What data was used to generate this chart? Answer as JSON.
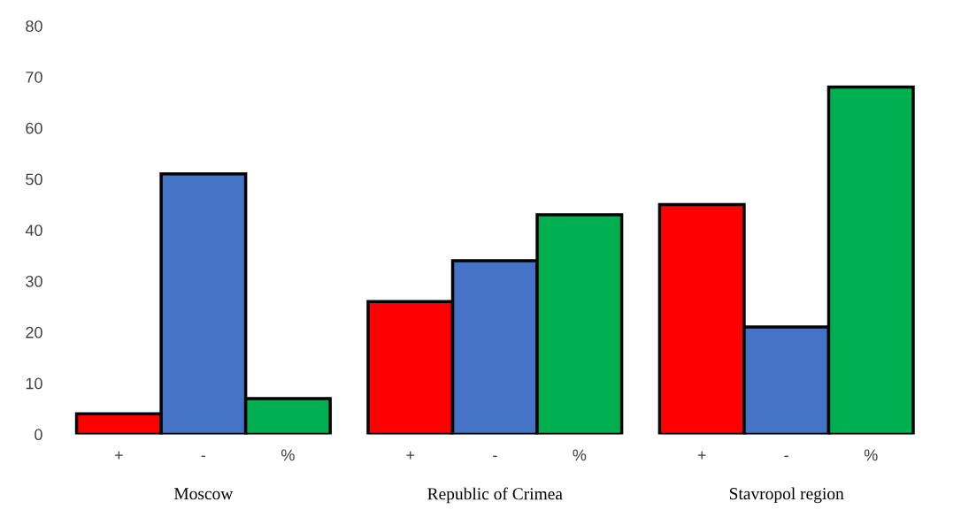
{
  "chart_data": {
    "type": "bar",
    "categories": [
      "Moscow",
      "Republic of Crimea",
      "Stavropol region"
    ],
    "series": [
      {
        "name": "+",
        "color": "#ff0000",
        "values": [
          4,
          26,
          45
        ]
      },
      {
        "name": "-",
        "color": "#4472c4",
        "values": [
          51,
          34,
          21
        ]
      },
      {
        "name": "%",
        "color": "#00b050",
        "values": [
          7,
          43,
          68
        ]
      }
    ],
    "ylim": [
      0,
      80
    ],
    "yticks": [
      0,
      10,
      20,
      30,
      40,
      50,
      60,
      70,
      80
    ],
    "grid": false,
    "legend": false
  }
}
